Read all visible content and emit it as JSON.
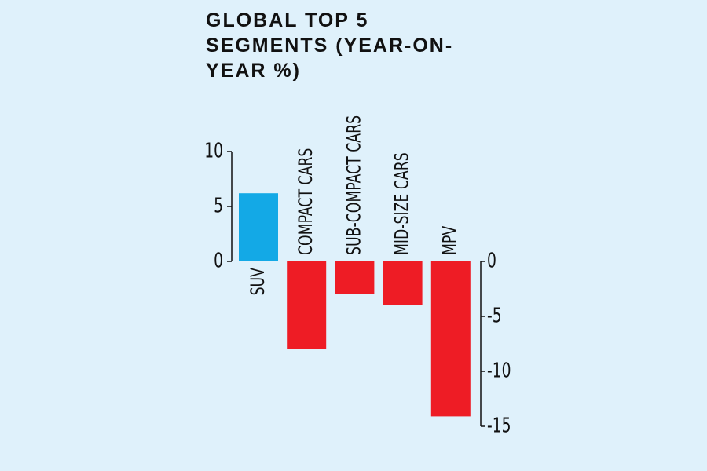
{
  "chart_data": {
    "type": "bar",
    "title": "GLOBAL TOP 5 SEGMENTS (YEAR-ON-YEAR %)",
    "categories": [
      "SUV",
      "COMPACT CARS",
      "SUB-COMPACT CARS",
      "MID-SIZE CARS",
      "MPV"
    ],
    "values": [
      6.2,
      -8.0,
      -3.0,
      -4.0,
      -14.1
    ],
    "colors": [
      "#13a9e6",
      "#ee1c25",
      "#ee1c25",
      "#ee1c25",
      "#ee1c25"
    ],
    "ylim": [
      0,
      10
    ],
    "yticks": [
      0,
      5,
      10
    ],
    "y2lim": [
      -15,
      0
    ],
    "y2ticks": [
      0,
      -5,
      -10,
      -15
    ]
  }
}
